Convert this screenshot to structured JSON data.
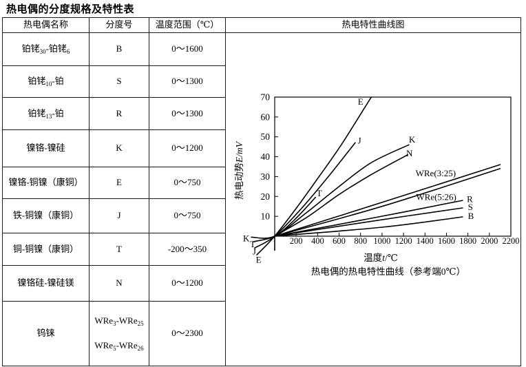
{
  "title": "热电偶的分度规格及特性表",
  "table": {
    "headers": [
      "热电偶名称",
      "分度号",
      "温度范围（℃）",
      "热电特性曲线图"
    ],
    "rows": [
      {
        "name": [
          "铂铑",
          "30",
          "-铂铑",
          "6"
        ],
        "code": "B",
        "range": "0～1600"
      },
      {
        "name": [
          "铂铑",
          "10",
          "-铂",
          ""
        ],
        "code": "S",
        "range": "0～1300"
      },
      {
        "name": [
          "铂铑",
          "13",
          "-铂",
          ""
        ],
        "code": "R",
        "range": "0～1300"
      },
      {
        "name": [
          "镍铬-镍硅",
          "",
          "",
          ""
        ],
        "code": "K",
        "range": "0～1200"
      },
      {
        "name": [
          "镍铬-铜镍（康铜）",
          "",
          "",
          ""
        ],
        "code": "E",
        "range": "0～750"
      },
      {
        "name": [
          "铁-铜镍（康铜）",
          "",
          "",
          ""
        ],
        "code": "J",
        "range": "0～750"
      },
      {
        "name": [
          "铜-铜镍（康铜）",
          "",
          "",
          ""
        ],
        "code": "T",
        "range": "-200～350"
      },
      {
        "name": [
          "镍铬硅-镍硅镁",
          "",
          "",
          ""
        ],
        "code": "N",
        "range": "0～1200"
      },
      {
        "name": [
          "钨铼",
          "",
          "",
          ""
        ],
        "code_lines": [
          [
            "WRe",
            "3",
            "-WRe",
            "25"
          ],
          [
            "WRe",
            "5",
            "-WRe",
            "26"
          ]
        ],
        "range": "0～2300"
      }
    ]
  },
  "chart_data": {
    "type": "line",
    "title": "热电特性曲线图",
    "xlabel": {
      "prefix": "温度",
      "symbol": "t",
      "unit": "/℃"
    },
    "ylabel": {
      "prefix": "热电动势",
      "symbol": "E/mV"
    },
    "caption": "热电偶的热电特性曲线（参考端0℃）",
    "xlim": [
      0,
      2200
    ],
    "ylim": [
      0,
      70
    ],
    "x_ticks": [
      200,
      400,
      600,
      800,
      1000,
      1200,
      1400,
      1600,
      1800,
      2000,
      2200
    ],
    "y_ticks": [
      10,
      20,
      30,
      40,
      50,
      60,
      70
    ],
    "grid": false,
    "series": [
      {
        "name": "E",
        "points": [
          [
            -167,
            -9.4
          ],
          [
            0,
            0
          ],
          [
            200,
            14
          ],
          [
            400,
            29
          ],
          [
            620,
            46
          ],
          [
            900,
            70
          ]
        ]
      },
      {
        "name": "J",
        "points": [
          [
            -186,
            -5.9
          ],
          [
            0,
            0
          ],
          [
            250,
            14
          ],
          [
            500,
            30
          ],
          [
            750,
            47
          ]
        ]
      },
      {
        "name": "K",
        "points": [
          [
            -218,
            -0.5
          ],
          [
            0,
            0
          ],
          [
            300,
            12
          ],
          [
            600,
            25
          ],
          [
            900,
            37
          ],
          [
            1250,
            46
          ]
        ]
      },
      {
        "name": "T",
        "points": [
          [
            -199,
            -2.8
          ],
          [
            0,
            0
          ],
          [
            180,
            8
          ],
          [
            380,
            19.5
          ]
        ]
      },
      {
        "name": "N",
        "points": [
          [
            0,
            0
          ],
          [
            300,
            9.5
          ],
          [
            600,
            21
          ],
          [
            900,
            31
          ],
          [
            1240,
            41
          ]
        ]
      },
      {
        "name": "WRe(3:25)",
        "points": [
          [
            0,
            0
          ],
          [
            1000,
            17
          ],
          [
            2100,
            36
          ]
        ]
      },
      {
        "name": "WRe(5:26)",
        "points": [
          [
            0,
            0
          ],
          [
            1000,
            15
          ],
          [
            2100,
            34
          ]
        ]
      },
      {
        "name": "R",
        "points": [
          [
            0,
            0
          ],
          [
            900,
            9
          ],
          [
            1750,
            18
          ]
        ]
      },
      {
        "name": "S",
        "points": [
          [
            0,
            0
          ],
          [
            900,
            7.5
          ],
          [
            1750,
            14.2
          ]
        ]
      },
      {
        "name": "B",
        "points": [
          [
            0,
            0
          ],
          [
            1000,
            4.5
          ],
          [
            1750,
            9.7
          ]
        ]
      }
    ],
    "curve_labels": [
      {
        "text": "E",
        "t": 800,
        "mv": 67.5,
        "anchor": "middle"
      },
      {
        "text": "J",
        "t": 790,
        "mv": 48,
        "anchor": "middle"
      },
      {
        "text": "K",
        "t": 1280,
        "mv": 48.5,
        "anchor": "middle"
      },
      {
        "text": "N",
        "t": 1255,
        "mv": 41.5,
        "anchor": "middle"
      },
      {
        "text": "T",
        "t": 415,
        "mv": 21.5,
        "anchor": "middle"
      },
      {
        "text": "WRe(3:25)",
        "t": 1500,
        "mv": 31.5,
        "anchor": "middle"
      },
      {
        "text": "WRe(5:26)",
        "t": 1505,
        "mv": 19.5,
        "anchor": "middle"
      },
      {
        "text": "R",
        "t": 1790,
        "mv": 18.5,
        "anchor": "start"
      },
      {
        "text": "S",
        "t": 1800,
        "mv": 14.5,
        "anchor": "start"
      },
      {
        "text": "B",
        "t": 1800,
        "mv": 10,
        "anchor": "start"
      },
      {
        "text": "K",
        "t": -265,
        "mv": -1.2,
        "anchor": "middle"
      },
      {
        "text": "T",
        "t": -205,
        "mv": -4.2,
        "anchor": "middle"
      },
      {
        "text": "J",
        "t": -190,
        "mv": -7.8,
        "anchor": "middle"
      },
      {
        "text": "E",
        "t": -150,
        "mv": -12,
        "anchor": "middle"
      }
    ]
  }
}
